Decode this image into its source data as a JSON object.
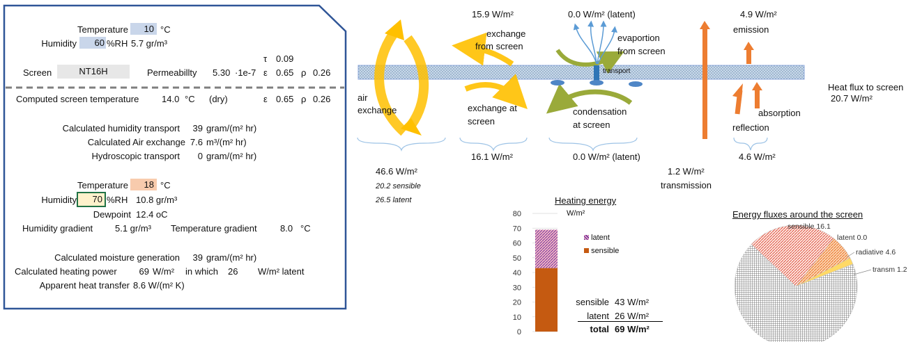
{
  "left_panel": {
    "outer": {
      "temperature_label": "Temperature",
      "temperature_value": "10",
      "temperature_unit": "°C",
      "humidity_label": "Humidity",
      "humidity_value": "60",
      "humidity_unit": "%RH",
      "abs_humidity": "5.7 gr/m³"
    },
    "screen": {
      "tau_label": "τ",
      "tau_value": "0.09",
      "screen_label": "Screen",
      "screen_value": "NT16H",
      "permeability_label": "Permeabillty",
      "permeability_value": "5.30",
      "permeability_exp": "·1e-7",
      "eps_label": "ε",
      "eps_value": "0.65",
      "rho_label": "ρ",
      "rho_value": "0.26"
    },
    "computed": {
      "screen_temp_label": "Computed screen temperature",
      "screen_temp_value": "14.0",
      "screen_temp_unit": "°C",
      "screen_temp_note": "(dry)",
      "eps_label": "ε",
      "eps_value": "0.65",
      "rho_label": "ρ",
      "rho_value": "0.26",
      "humidity_transport_label": "Calculated humidity transport",
      "humidity_transport_value": "39",
      "humidity_transport_unit": "gram/(m² hr)",
      "air_exchange_label": "Calculated Air exchange",
      "air_exchange_value": "7.6",
      "air_exchange_unit": "m³/(m² hr)",
      "hydro_label": "Hydroscopic transport",
      "hydro_value": "0",
      "hydro_unit": "gram/(m² hr)"
    },
    "inner": {
      "temperature_label": "Temperature",
      "temperature_value": "18",
      "temperature_unit": "°C",
      "humidity_label": "Humidity",
      "humidity_value": "70",
      "humidity_unit": "%RH",
      "abs_humidity": "10.8 gr/m³",
      "dewpoint_label": "Dewpoint",
      "dewpoint_value": "12.4 oC",
      "humidity_gradient_label": "Humidity gradient",
      "humidity_gradient_value": "5.1 gr/m³",
      "temp_gradient_label": "Temperature gradient",
      "temp_gradient_value": "8.0",
      "temp_gradient_unit": "°C"
    },
    "results": {
      "moisture_label": "Calculated moisture generation",
      "moisture_value": "39",
      "moisture_unit": "gram/(m² hr)",
      "heating_label": "Calculated heating power",
      "heating_value": "69",
      "heating_unit": "W/m²",
      "in_which": "in which",
      "latent_value": "26",
      "latent_unit": "W/m² latent",
      "heat_transfer_label": "Apparent heat transfer",
      "heat_transfer_value": "8.6 W/(m² K)"
    }
  },
  "diagram": {
    "top_exchange_value": "15.9 W/m²",
    "top_latent_value": "0.0 W/m² (latent)",
    "top_emission_value": "4.9 W/m²",
    "exchange_from_screen": [
      "exchange",
      "from screen"
    ],
    "evaporation_from_screen": [
      "evaportion",
      "from screen"
    ],
    "emission_label": "emission",
    "transport_label": "transport",
    "heat_flux_label": "Heat flux to screen",
    "heat_flux_value": "20.7 W/m²",
    "air_exchange": [
      "air",
      "exchange"
    ],
    "exchange_at_screen": [
      "exchange at",
      "screen"
    ],
    "condensation_at_screen": [
      "condensation",
      "at screen"
    ],
    "absorption_label": "absorption",
    "reflection_label": "reflection",
    "bottom_exchange_value": "16.1 W/m²",
    "bottom_latent_value": "0.0 W/m² (latent)",
    "bottom_reflection_value": "4.6 W/m²",
    "air_total_value": "46.6 W/m²",
    "air_sensible": "20.2  sensible",
    "air_latent": "26.5  latent",
    "transmission_value": "1.2 W/m²",
    "transmission_label": "transmission"
  },
  "colors": {
    "orange_arrow": "#ed7d31",
    "yellow_arrow": "#ffc000",
    "green_arrow": "#9aaa3a",
    "blue_drop": "#4f86c6",
    "screen_band": "#bfcfe0",
    "sensible_bar": "#c55a11",
    "panel_border": "#2f5597"
  },
  "chart_data": [
    {
      "type": "bar",
      "title": "Heating energy",
      "ylabel": "W/m²",
      "ylim": [
        0,
        80
      ],
      "yticks": [
        "0",
        "10",
        "20",
        "30",
        "40",
        "50",
        "60",
        "70",
        "80"
      ],
      "categories": [
        ""
      ],
      "series": [
        {
          "name": "sensible",
          "values": [
            43
          ]
        },
        {
          "name": "latent",
          "values": [
            26
          ]
        }
      ],
      "summary": {
        "sensible_label": "sensible",
        "sensible_value": "43 W/m²",
        "latent_label": "latent",
        "latent_value": "26 W/m²",
        "total_label": "total",
        "total_value": "69 W/m²"
      }
    },
    {
      "type": "pie",
      "title": "Energy fluxes around the screen",
      "slices": [
        {
          "label": "sensible 16.1",
          "value": 16.1
        },
        {
          "label": "latent 0.0",
          "value": 0.0
        },
        {
          "label": "radiative 4.6",
          "value": 4.6
        },
        {
          "label": "transm 1.2",
          "value": 1.2
        },
        {
          "label": "",
          "value": 46.6
        }
      ]
    }
  ]
}
